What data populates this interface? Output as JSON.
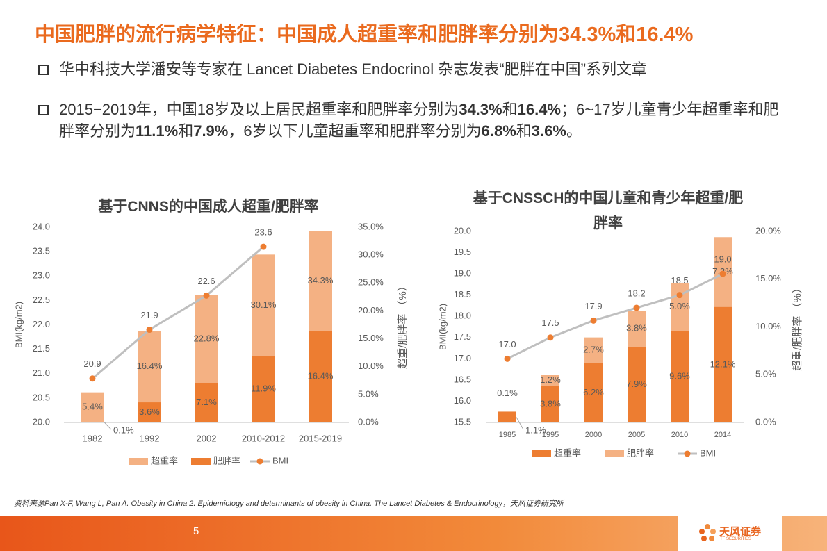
{
  "title": "中国肥胖的流行病学特征：中国成人超重率和肥胖率分别为34.3%和16.4%",
  "bullets": [
    {
      "runs": [
        {
          "text": "华中科技大学潘安等专家在 Lancet Diabetes Endocrinol 杂志发表“肥胖在中国”系列文章",
          "bold": false
        }
      ]
    },
    {
      "runs": [
        {
          "text": "2015−2019年，中国18岁及以上居民超重率和肥胖率分别为",
          "bold": false
        },
        {
          "text": "34.3%",
          "bold": true
        },
        {
          "text": "和",
          "bold": false
        },
        {
          "text": "16.4%",
          "bold": true
        },
        {
          "text": "；6~17岁儿童青少年超重率和肥胖率分别为",
          "bold": false
        },
        {
          "text": "11.1%",
          "bold": true
        },
        {
          "text": "和",
          "bold": false
        },
        {
          "text": "7.9%",
          "bold": true
        },
        {
          "text": "，6岁以下儿童超重率和肥胖率分别为",
          "bold": false
        },
        {
          "text": "6.8%",
          "bold": true
        },
        {
          "text": "和",
          "bold": false
        },
        {
          "text": "3.6%",
          "bold": true
        },
        {
          "text": "。",
          "bold": false
        }
      ]
    }
  ],
  "chart_data": [
    {
      "type": "bar",
      "bar_mode": "overlap",
      "title": "基于CNNS的中国成人超重/肥胖率",
      "ylabel": "BMI(kg/m2)",
      "y2label": "超重/肥胖率 （%）",
      "categories": [
        "1982",
        "1992",
        "2002",
        "2010-2012",
        "2015-2019"
      ],
      "series": [
        {
          "name": "超重率",
          "type": "bar",
          "axis": "y2",
          "color": "#F4B183",
          "values": [
            5.4,
            16.4,
            22.8,
            30.1,
            34.3
          ],
          "value_labels": [
            "5.4%",
            "16.4%",
            "22.8%",
            "30.1%",
            "34.3%"
          ]
        },
        {
          "name": "肥胖率",
          "type": "bar",
          "axis": "y2",
          "color": "#ED7D31",
          "values": [
            0.1,
            3.6,
            7.1,
            11.9,
            16.4
          ],
          "value_labels": [
            "0.1%",
            "3.6%",
            "7.1%",
            "11.9%",
            "16.4%"
          ]
        },
        {
          "name": "BMI",
          "type": "line",
          "axis": "y",
          "color": "#BFBFBF",
          "marker_color": "#ED7D31",
          "values": [
            20.9,
            21.9,
            22.6,
            23.6,
            null
          ],
          "value_labels": [
            "20.9",
            "21.9",
            "22.6",
            "23.6",
            null
          ]
        }
      ],
      "ylim": [
        20,
        24
      ],
      "yticks": [
        {
          "value": 20,
          "label": "20.0"
        },
        20.5,
        {
          "value": 21,
          "label": "21.0"
        },
        21.5,
        {
          "value": 22,
          "label": "22.0"
        },
        22.5,
        {
          "value": 23,
          "label": "23.0"
        },
        23.5,
        {
          "value": 24,
          "label": "24.0"
        }
      ],
      "y2lim": [
        0,
        35
      ],
      "y2ticks": [
        {
          "value": 0,
          "label": "0.0%"
        },
        {
          "value": 5,
          "label": "5.0%"
        },
        {
          "value": 10,
          "label": "10.0%"
        },
        {
          "value": 15,
          "label": "15.0%"
        },
        {
          "value": 20,
          "label": "20.0%"
        },
        {
          "value": 25,
          "label": "25.0%"
        },
        {
          "value": 30,
          "label": "30.0%"
        },
        {
          "value": 35,
          "label": "35.0%"
        }
      ],
      "grid": false,
      "legend": "bottom"
    },
    {
      "type": "bar",
      "bar_mode": "stack",
      "title": "基于CNSSCH的中国儿童和青少年超重/肥胖率",
      "ylabel": "BMI(kg/m2)",
      "y2label": "超重/肥胖率 （%）",
      "categories": [
        "1985",
        "1995",
        "2000",
        "2005",
        "2010",
        "2014"
      ],
      "series": [
        {
          "name": "超重率",
          "type": "bar",
          "axis": "y2",
          "color": "#ED7D31",
          "values": [
            1.1,
            3.8,
            6.2,
            7.9,
            9.6,
            12.1
          ],
          "value_labels": [
            "1.1%",
            "3.8%",
            "6.2%",
            "7.9%",
            "9.6%",
            "12.1%"
          ]
        },
        {
          "name": "肥胖率",
          "type": "bar",
          "axis": "y2",
          "color": "#F4B183",
          "values": [
            0.1,
            1.2,
            2.7,
            3.8,
            5.0,
            7.3
          ],
          "value_labels": [
            "0.1%",
            "1.2%",
            "2.7%",
            "3.8%",
            "5.0%",
            "7.3%"
          ]
        },
        {
          "name": "BMI",
          "type": "line",
          "axis": "y",
          "color": "#BFBFBF",
          "marker_color": "#ED7D31",
          "values": [
            17.0,
            17.5,
            17.9,
            18.2,
            18.5,
            19.0
          ],
          "value_labels": [
            "17.0",
            "17.5",
            "17.9",
            "18.2",
            "18.5",
            "19.0"
          ]
        }
      ],
      "ylim": [
        15.5,
        20
      ],
      "yticks": [
        15.5,
        {
          "value": 16,
          "label": "16.0"
        },
        16.5,
        {
          "value": 17,
          "label": "17.0"
        },
        17.5,
        {
          "value": 18,
          "label": "18.0"
        },
        18.5,
        {
          "value": 19,
          "label": "19.0"
        },
        19.5,
        {
          "value": 20,
          "label": "20.0"
        }
      ],
      "y2lim": [
        0,
        20
      ],
      "y2ticks": [
        {
          "value": 0,
          "label": "0.0%"
        },
        {
          "value": 5,
          "label": "5.0%"
        },
        {
          "value": 10,
          "label": "10.0%"
        },
        {
          "value": 15,
          "label": "15.0%"
        },
        {
          "value": 20,
          "label": "20.0%"
        }
      ],
      "grid": false,
      "legend": "bottom"
    }
  ],
  "source": "资料来源Pan X-F, Wang L, Pan A. Obesity in China 2. Epidemiology and  determinants of obesity in China. The Lancet Diabetes & Endocrinology，天风证券研究所",
  "page_number": "5",
  "logo": {
    "name": "天风证券",
    "subtitle": "TF SECURITIES"
  }
}
